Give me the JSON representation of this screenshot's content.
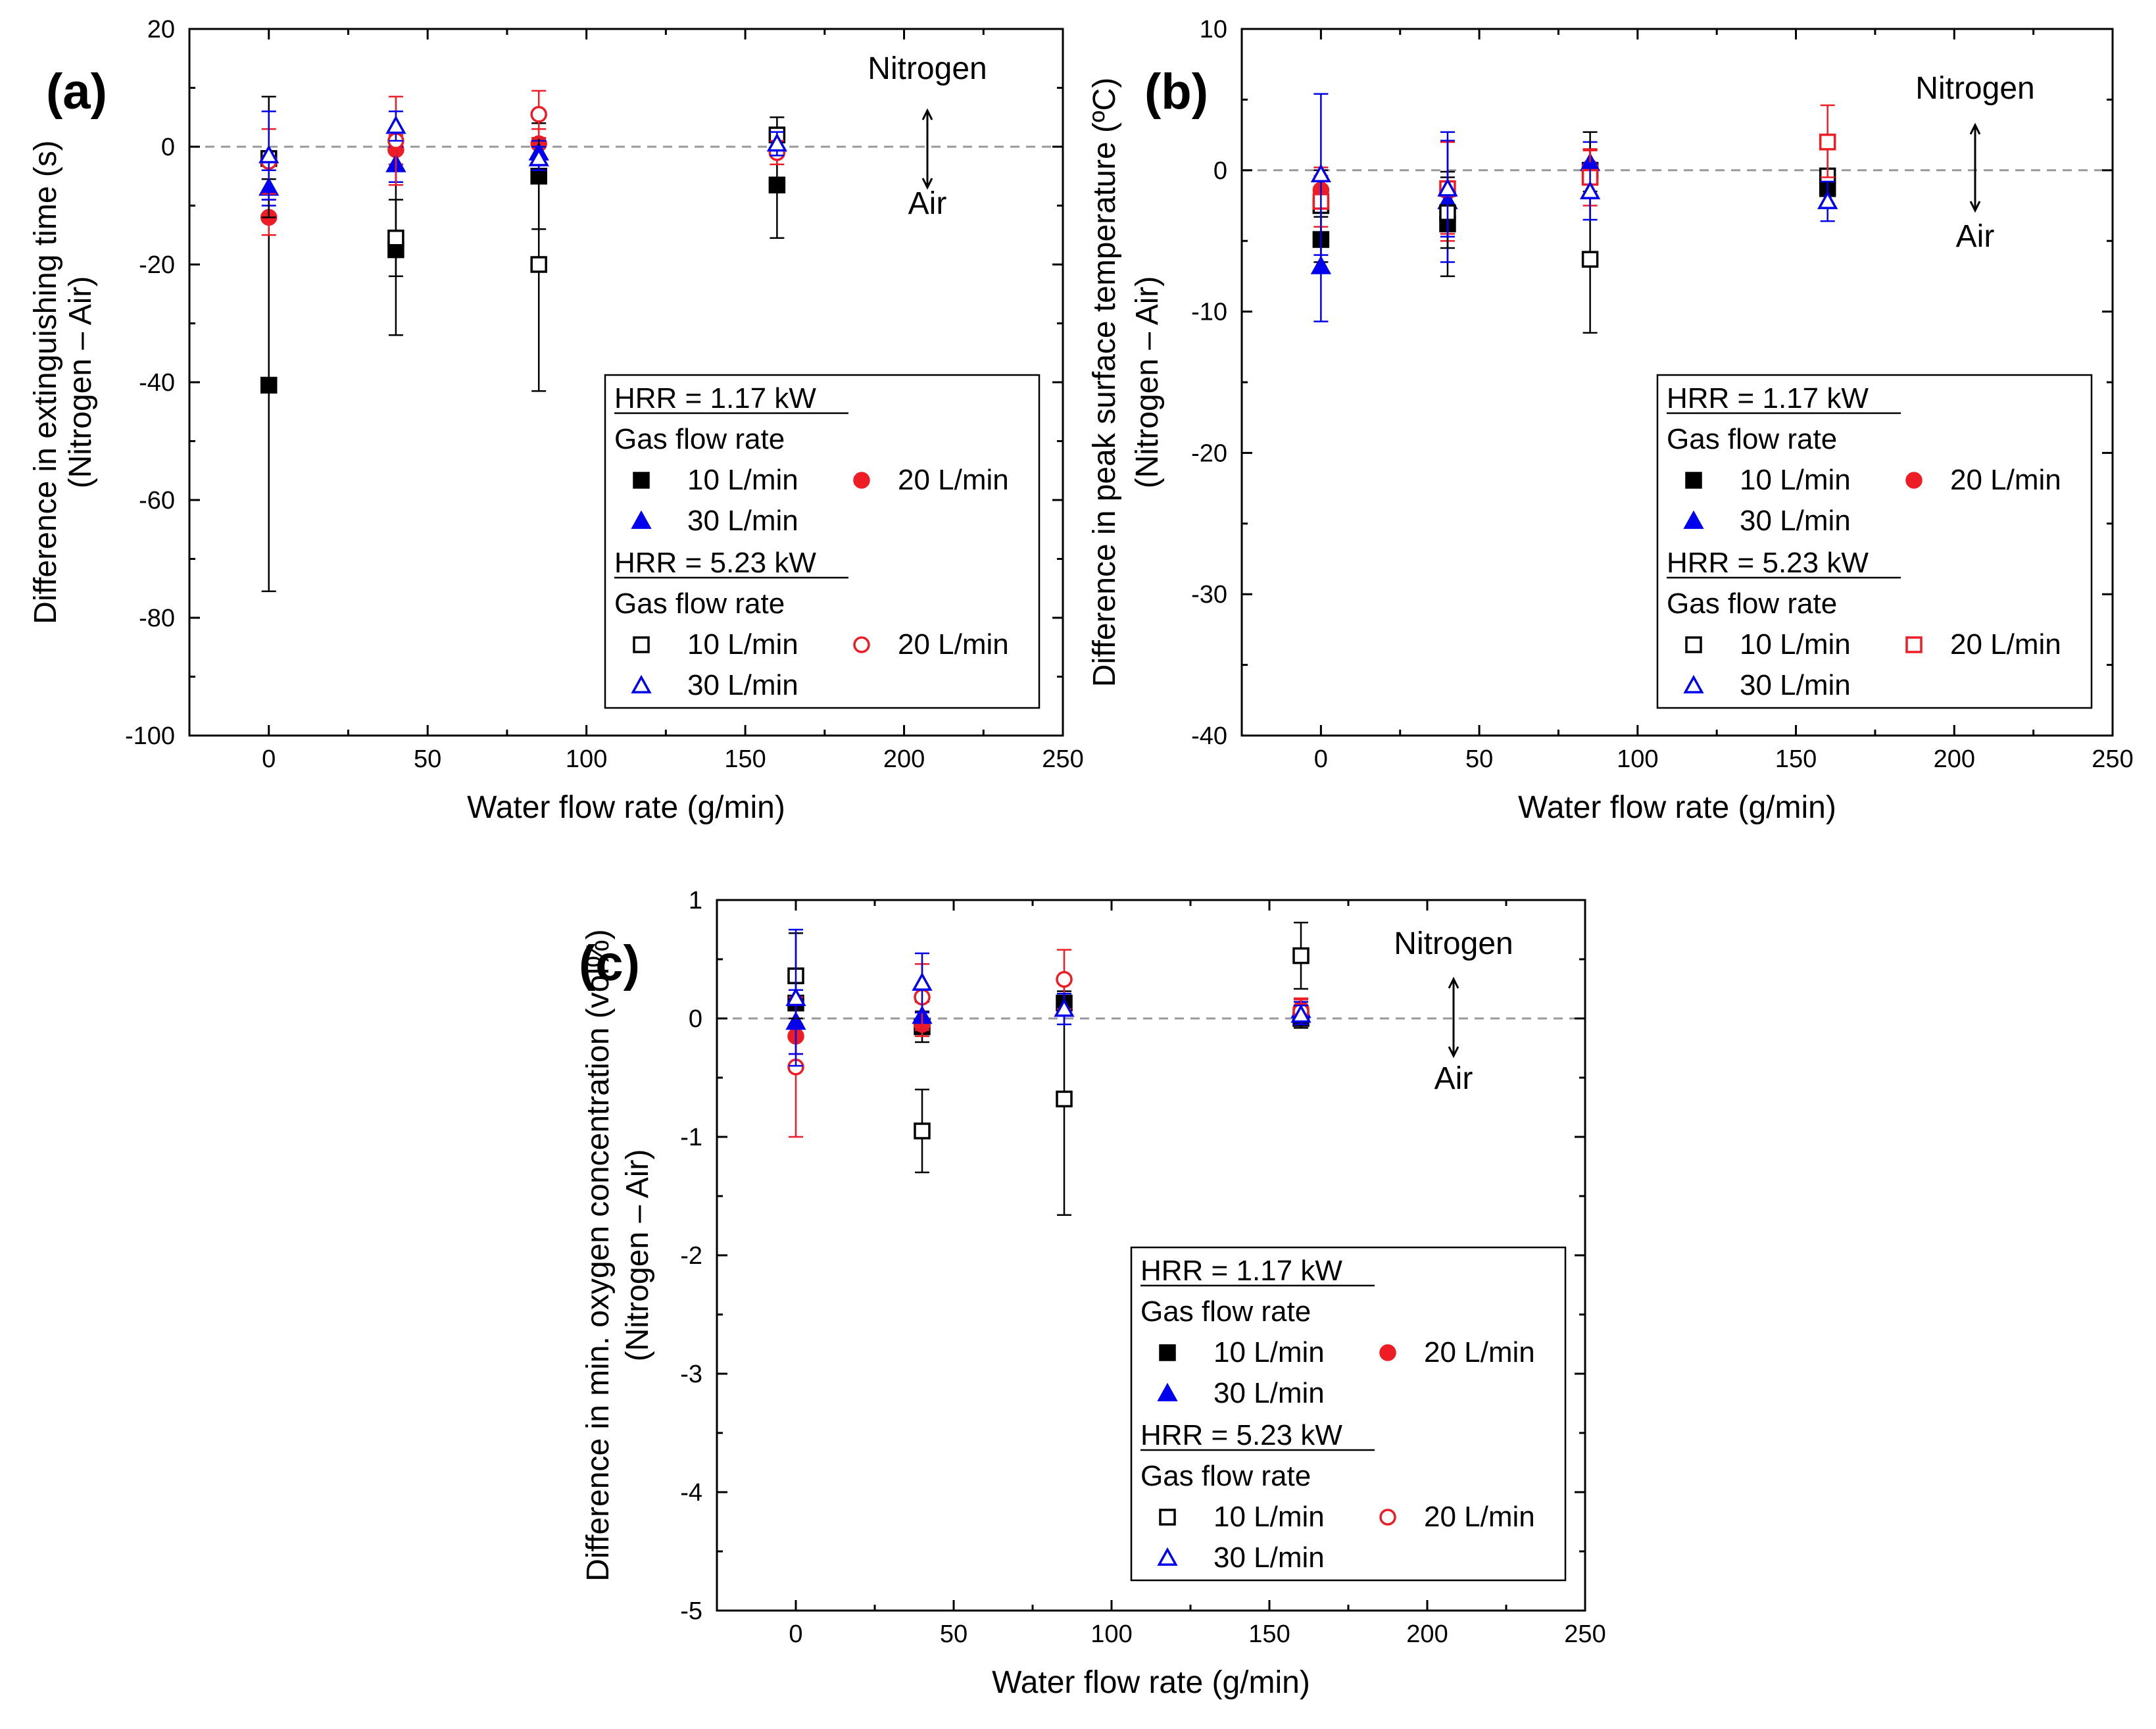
{
  "figure": {
    "caption": ""
  },
  "chart_data": [
    {
      "id": "a",
      "type": "scatter",
      "panel_label": "(a)",
      "xlabel": "Water flow rate (g/min)",
      "ylabel": "Difference in extinguishing time (s)",
      "ylabel2": "(Nitrogen – Air)",
      "xlim": [
        -25,
        250
      ],
      "ylim": [
        -100,
        20
      ],
      "xticks": [
        0,
        50,
        100,
        150,
        200,
        250
      ],
      "yticks": [
        -100,
        -80,
        -60,
        -40,
        -20,
        0,
        20
      ],
      "reference_line": 0,
      "annotations": {
        "top": "Nitrogen",
        "bottom": "Air"
      },
      "legend": {
        "groups": [
          {
            "title": "HRR = 1.17 kW",
            "subtitle": "Gas flow rate",
            "entries": [
              "10 L/min",
              "20 L/min",
              "30 L/min"
            ]
          },
          {
            "title": "HRR = 5.23 kW",
            "subtitle": "Gas flow rate",
            "entries": [
              "10 L/min",
              "20 L/min",
              "30 L/min"
            ]
          }
        ]
      },
      "series": [
        {
          "name": "HRR 1.17 kW, 10 L/min",
          "marker": "square",
          "filled": true,
          "color": "#000000",
          "points": [
            {
              "x": 0,
              "y": -40.5,
              "lo": -75.5,
              "hi": -5.5
            },
            {
              "x": 40,
              "y": -17.5,
              "lo": -32,
              "hi": -3
            },
            {
              "x": 85,
              "y": -5,
              "lo": -14,
              "hi": 4
            },
            {
              "x": 160,
              "y": -6.5,
              "lo": -15.5,
              "hi": 2.5
            }
          ]
        },
        {
          "name": "HRR 1.17 kW, 20 L/min",
          "marker": "circle",
          "filled": true,
          "color": "#ee1c25",
          "points": [
            {
              "x": 0,
              "y": -12,
              "lo": -15,
              "hi": -9
            },
            {
              "x": 40,
              "y": -0.5,
              "lo": -3,
              "hi": 2
            },
            {
              "x": 85,
              "y": 0.5,
              "lo": -2,
              "hi": 3
            }
          ]
        },
        {
          "name": "HRR 1.17 kW, 30 L/min",
          "marker": "triangle",
          "filled": true,
          "color": "#0000ee",
          "points": [
            {
              "x": 0,
              "y": -7,
              "lo": -10,
              "hi": -4
            },
            {
              "x": 40,
              "y": -3,
              "lo": -6,
              "hi": 0
            },
            {
              "x": 85,
              "y": -1,
              "lo": -3,
              "hi": 1
            }
          ]
        },
        {
          "name": "HRR 5.23 kW, 10 L/min",
          "marker": "square",
          "filled": false,
          "color": "#000000",
          "points": [
            {
              "x": 0,
              "y": -2,
              "lo": -12,
              "hi": 8.5
            },
            {
              "x": 40,
              "y": -15.5,
              "lo": -22,
              "hi": -9
            },
            {
              "x": 85,
              "y": -20,
              "lo": -41.5,
              "hi": 1.5
            },
            {
              "x": 160,
              "y": 2,
              "lo": -1,
              "hi": 5
            }
          ]
        },
        {
          "name": "HRR 5.23 kW, 20 L/min",
          "marker": "circle",
          "filled": false,
          "color": "#ee1c25",
          "points": [
            {
              "x": 0,
              "y": -2.5,
              "lo": -8,
              "hi": 3
            },
            {
              "x": 40,
              "y": 1,
              "lo": -6.5,
              "hi": 8.5
            },
            {
              "x": 85,
              "y": 5.5,
              "lo": 1.5,
              "hi": 9.5
            },
            {
              "x": 160,
              "y": -1,
              "lo": -3,
              "hi": 1
            }
          ]
        },
        {
          "name": "HRR 5.23 kW, 30 L/min",
          "marker": "triangle",
          "filled": false,
          "color": "#0000ee",
          "points": [
            {
              "x": 0,
              "y": -1.5,
              "lo": -9,
              "hi": 6
            },
            {
              "x": 40,
              "y": 3.5,
              "lo": 1,
              "hi": 6
            },
            {
              "x": 85,
              "y": -2,
              "lo": -4,
              "hi": 0
            },
            {
              "x": 160,
              "y": 0.5,
              "lo": -1.5,
              "hi": 2.5
            }
          ]
        }
      ]
    },
    {
      "id": "b",
      "type": "scatter",
      "panel_label": "(b)",
      "xlabel": "Water flow rate (g/min)",
      "ylabel": "Difference in peak surface temperature (ºC)",
      "ylabel2": "(Nitrogen – Air)",
      "xlim": [
        -25,
        250
      ],
      "ylim": [
        -40,
        10
      ],
      "xticks": [
        0,
        50,
        100,
        150,
        200,
        250
      ],
      "yticks": [
        -40,
        -30,
        -20,
        -10,
        0,
        10
      ],
      "reference_line": 0,
      "annotations": {
        "top": "Nitrogen",
        "bottom": "Air"
      },
      "legend": {
        "groups": [
          {
            "title": "HRR = 1.17 kW",
            "subtitle": "Gas flow rate",
            "entries": [
              "10 L/min",
              "20 L/min",
              "30 L/min"
            ]
          },
          {
            "title": "HRR = 5.23 kW",
            "subtitle": "Gas flow rate",
            "entries": [
              "10 L/min",
              "20 L/min",
              "30 L/min"
            ]
          }
        ]
      },
      "series": [
        {
          "name": "HRR 1.17 kW, 10 L/min",
          "marker": "square",
          "filled": true,
          "color": "#000000",
          "points": [
            {
              "x": 0,
              "y": -4.9,
              "lo": -6.5,
              "hi": -3.3
            },
            {
              "x": 40,
              "y": -3.8,
              "lo": -7.5,
              "hi": -0.1
            },
            {
              "x": 85,
              "y": 0,
              "lo": -1.5,
              "hi": 1.5
            },
            {
              "x": 160,
              "y": -1.3,
              "lo": -2.5,
              "hi": -0.1
            }
          ]
        },
        {
          "name": "HRR 1.17 kW, 20 L/min",
          "marker": "circle",
          "filled": true,
          "color": "#ee1c25",
          "points": [
            {
              "x": 0,
              "y": -1.4,
              "lo": -3,
              "hi": 0.2
            },
            {
              "x": 40,
              "y": -1.5,
              "lo": -5,
              "hi": 2
            },
            {
              "x": 85,
              "y": 0.2,
              "lo": -1,
              "hi": 1.4
            }
          ]
        },
        {
          "name": "HRR 1.17 kW, 30 L/min",
          "marker": "triangle",
          "filled": true,
          "color": "#0000ee",
          "points": [
            {
              "x": 0,
              "y": -6.8,
              "lo": -10.7,
              "hi": -2.9
            },
            {
              "x": 40,
              "y": -2.2,
              "lo": -6.5,
              "hi": 2.1
            },
            {
              "x": 85,
              "y": 0.5,
              "lo": -1,
              "hi": 2
            }
          ]
        },
        {
          "name": "HRR 5.23 kW, 10 L/min",
          "marker": "square",
          "filled": false,
          "color": "#000000",
          "points": [
            {
              "x": 0,
              "y": -2.5,
              "lo": -5,
              "hi": 0
            },
            {
              "x": 40,
              "y": -3,
              "lo": -5.5,
              "hi": -0.5
            },
            {
              "x": 85,
              "y": -6.3,
              "lo": -11.5,
              "hi": 2.7
            },
            {
              "x": 160,
              "y": -0.4,
              "lo": -2.5,
              "hi": 1.7
            }
          ]
        },
        {
          "name": "HRR 5.23 kW, 20 L/min",
          "marker": "square",
          "filled": false,
          "color": "#ee1c25",
          "points": [
            {
              "x": 0,
              "y": -2.2,
              "lo": -4,
              "hi": -0.4
            },
            {
              "x": 40,
              "y": -1.3,
              "lo": -4.5,
              "hi": 2
            },
            {
              "x": 85,
              "y": -0.5,
              "lo": -2.5,
              "hi": 1.5
            },
            {
              "x": 160,
              "y": 2,
              "lo": -0.5,
              "hi": 4.6
            }
          ]
        },
        {
          "name": "HRR 5.23 kW, 30 L/min",
          "marker": "triangle",
          "filled": false,
          "color": "#0000ee",
          "points": [
            {
              "x": 0,
              "y": -0.3,
              "lo": -6,
              "hi": 5.4
            },
            {
              "x": 40,
              "y": -1.3,
              "lo": -4.7,
              "hi": 2.7
            },
            {
              "x": 85,
              "y": -1.5,
              "lo": -3.5,
              "hi": 0.5
            },
            {
              "x": 160,
              "y": -2.2,
              "lo": -3.6,
              "hi": -0.8
            }
          ]
        }
      ]
    },
    {
      "id": "c",
      "type": "scatter",
      "panel_label": "(c)",
      "xlabel": "Water flow rate (g/min)",
      "ylabel": "Difference in min. oxygen concentration (vol%)",
      "ylabel2": "(Nitrogen – Air)",
      "xlim": [
        -25,
        250
      ],
      "ylim": [
        -5,
        1
      ],
      "xticks": [
        0,
        50,
        100,
        150,
        200,
        250
      ],
      "yticks": [
        -5,
        -4,
        -3,
        -2,
        -1,
        0,
        1
      ],
      "reference_line": 0,
      "annotations": {
        "top": "Nitrogen",
        "bottom": "Air"
      },
      "legend": {
        "groups": [
          {
            "title": "HRR = 1.17 kW",
            "subtitle": "Gas flow rate",
            "entries": [
              "10 L/min",
              "20 L/min",
              "30 L/min"
            ]
          },
          {
            "title": "HRR = 5.23 kW",
            "subtitle": "Gas flow rate",
            "entries": [
              "10 L/min",
              "20 L/min",
              "30 L/min"
            ]
          }
        ]
      },
      "series": [
        {
          "name": "HRR 1.17 kW, 10 L/min",
          "marker": "square",
          "filled": true,
          "color": "#000000",
          "points": [
            {
              "x": 0,
              "y": 0.13,
              "lo": -0.05,
              "hi": 0.31
            },
            {
              "x": 40,
              "y": -0.07,
              "lo": -0.2,
              "hi": 0.06
            },
            {
              "x": 85,
              "y": 0.13,
              "lo": 0.03,
              "hi": 0.23
            },
            {
              "x": 160,
              "y": 0,
              "lo": -0.08,
              "hi": 0.08
            }
          ]
        },
        {
          "name": "HRR 1.17 kW, 20 L/min",
          "marker": "circle",
          "filled": true,
          "color": "#ee1c25",
          "points": [
            {
              "x": 0,
              "y": -0.15,
              "lo": -0.3,
              "hi": 0
            },
            {
              "x": 40,
              "y": -0.05,
              "lo": -0.15,
              "hi": 0.05
            },
            {
              "x": 160,
              "y": 0.08,
              "lo": 0,
              "hi": 0.16
            }
          ]
        },
        {
          "name": "HRR 1.17 kW, 30 L/min",
          "marker": "triangle",
          "filled": true,
          "color": "#0000ee",
          "points": [
            {
              "x": 0,
              "y": -0.03,
              "lo": -0.3,
              "hi": 0.24
            },
            {
              "x": 40,
              "y": 0.02,
              "lo": -0.1,
              "hi": 0.14
            },
            {
              "x": 160,
              "y": 0.07,
              "lo": 0,
              "hi": 0.14
            }
          ]
        },
        {
          "name": "HRR 5.23 kW, 10 L/min",
          "marker": "square",
          "filled": false,
          "color": "#000000",
          "points": [
            {
              "x": 0,
              "y": 0.36,
              "lo": 0,
              "hi": 0.72
            },
            {
              "x": 40,
              "y": -0.95,
              "lo": -1.3,
              "hi": -0.6
            },
            {
              "x": 85,
              "y": -0.68,
              "lo": -1.66,
              "hi": 0.3
            },
            {
              "x": 160,
              "y": 0.53,
              "lo": 0.25,
              "hi": 0.81
            }
          ]
        },
        {
          "name": "HRR 5.23 kW, 20 L/min",
          "marker": "circle",
          "filled": false,
          "color": "#ee1c25",
          "points": [
            {
              "x": 0,
              "y": -0.41,
              "lo": -1,
              "hi": 0.18
            },
            {
              "x": 40,
              "y": 0.18,
              "lo": -0.1,
              "hi": 0.46
            },
            {
              "x": 85,
              "y": 0.33,
              "lo": 0.08,
              "hi": 0.58
            },
            {
              "x": 160,
              "y": 0.06,
              "lo": -0.05,
              "hi": 0.17
            }
          ]
        },
        {
          "name": "HRR 5.23 kW, 30 L/min",
          "marker": "triangle",
          "filled": false,
          "color": "#0000ee",
          "points": [
            {
              "x": 0,
              "y": 0.17,
              "lo": -0.4,
              "hi": 0.75
            },
            {
              "x": 40,
              "y": 0.3,
              "lo": 0.05,
              "hi": 0.55
            },
            {
              "x": 85,
              "y": 0.08,
              "lo": -0.05,
              "hi": 0.21
            },
            {
              "x": 160,
              "y": 0.03,
              "lo": -0.05,
              "hi": 0.11
            }
          ]
        }
      ]
    }
  ]
}
